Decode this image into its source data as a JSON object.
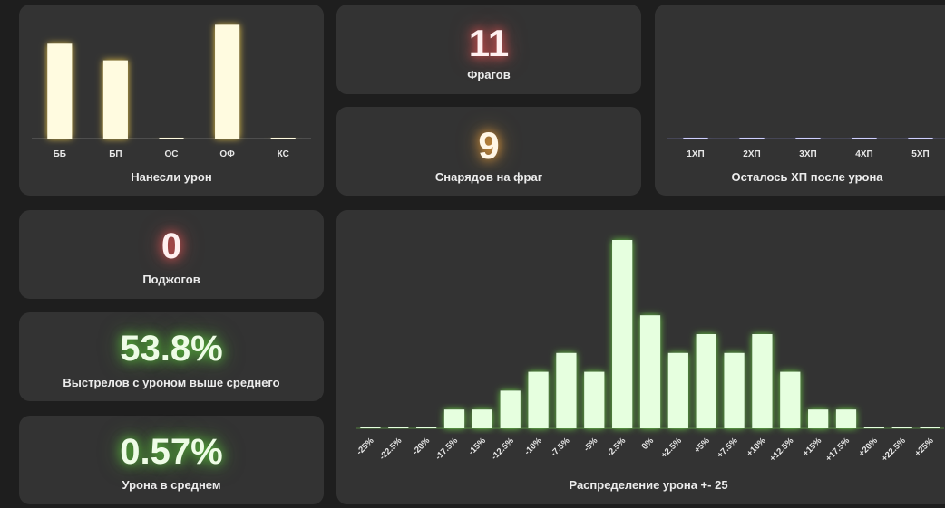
{
  "colors": {
    "background": "#1e1e1e",
    "card": "#333333",
    "yellow_bar": "#fffbe0",
    "yellow_glow": "#ffd84a",
    "green_bar": "#e6ffdf",
    "green_glow": "#6fdc45",
    "blue_glow": "#7a7aff",
    "red_glow": "#ff6b6b",
    "orange_glow": "#ffb347"
  },
  "stats": {
    "frags": {
      "value": "11",
      "label": "Фрагов",
      "glow": "red"
    },
    "shells_per_frag": {
      "value": "9",
      "label": "Снарядов на фраг",
      "glow": "orange"
    },
    "fires": {
      "value": "0",
      "label": "Поджогов",
      "glow": "red"
    },
    "above_avg": {
      "value": "53.8%",
      "label": "Выстрелов с уроном выше среднего",
      "glow": "green"
    },
    "avg_damage": {
      "value": "0.57%",
      "label": "Урона в среднем",
      "glow": "green"
    }
  },
  "chart_data": [
    {
      "type": "bar",
      "title": "Нанесли урон",
      "categories": [
        "ББ",
        "БП",
        "ОС",
        "ОФ",
        "КС"
      ],
      "values": [
        20,
        16.5,
        0,
        24,
        0
      ],
      "color": "yellow"
    },
    {
      "type": "bar",
      "title": "Осталось ХП после урона",
      "categories": [
        "1ХП",
        "2ХП",
        "3ХП",
        "4ХП",
        "5ХП"
      ],
      "values": [
        0,
        0,
        0,
        0,
        0
      ],
      "color": "blue"
    },
    {
      "type": "bar",
      "title": "Распределение урона +- 25",
      "categories": [
        "-25%",
        "-22.5%",
        "-20%",
        "-17.5%",
        "-15%",
        "-12.5%",
        "-10%",
        "-7.5%",
        "-5%",
        "-2.5%",
        "0%",
        "+2.5%",
        "+5%",
        "+7.5%",
        "+10%",
        "+12.5%",
        "+15%",
        "+17.5%",
        "+20%",
        "+22.5%",
        "+25%"
      ],
      "values": [
        0,
        0,
        0,
        1,
        1,
        2,
        3,
        4,
        3,
        10,
        6,
        4,
        5,
        4,
        5,
        3,
        1,
        1,
        0,
        0,
        0
      ],
      "color": "green"
    }
  ]
}
